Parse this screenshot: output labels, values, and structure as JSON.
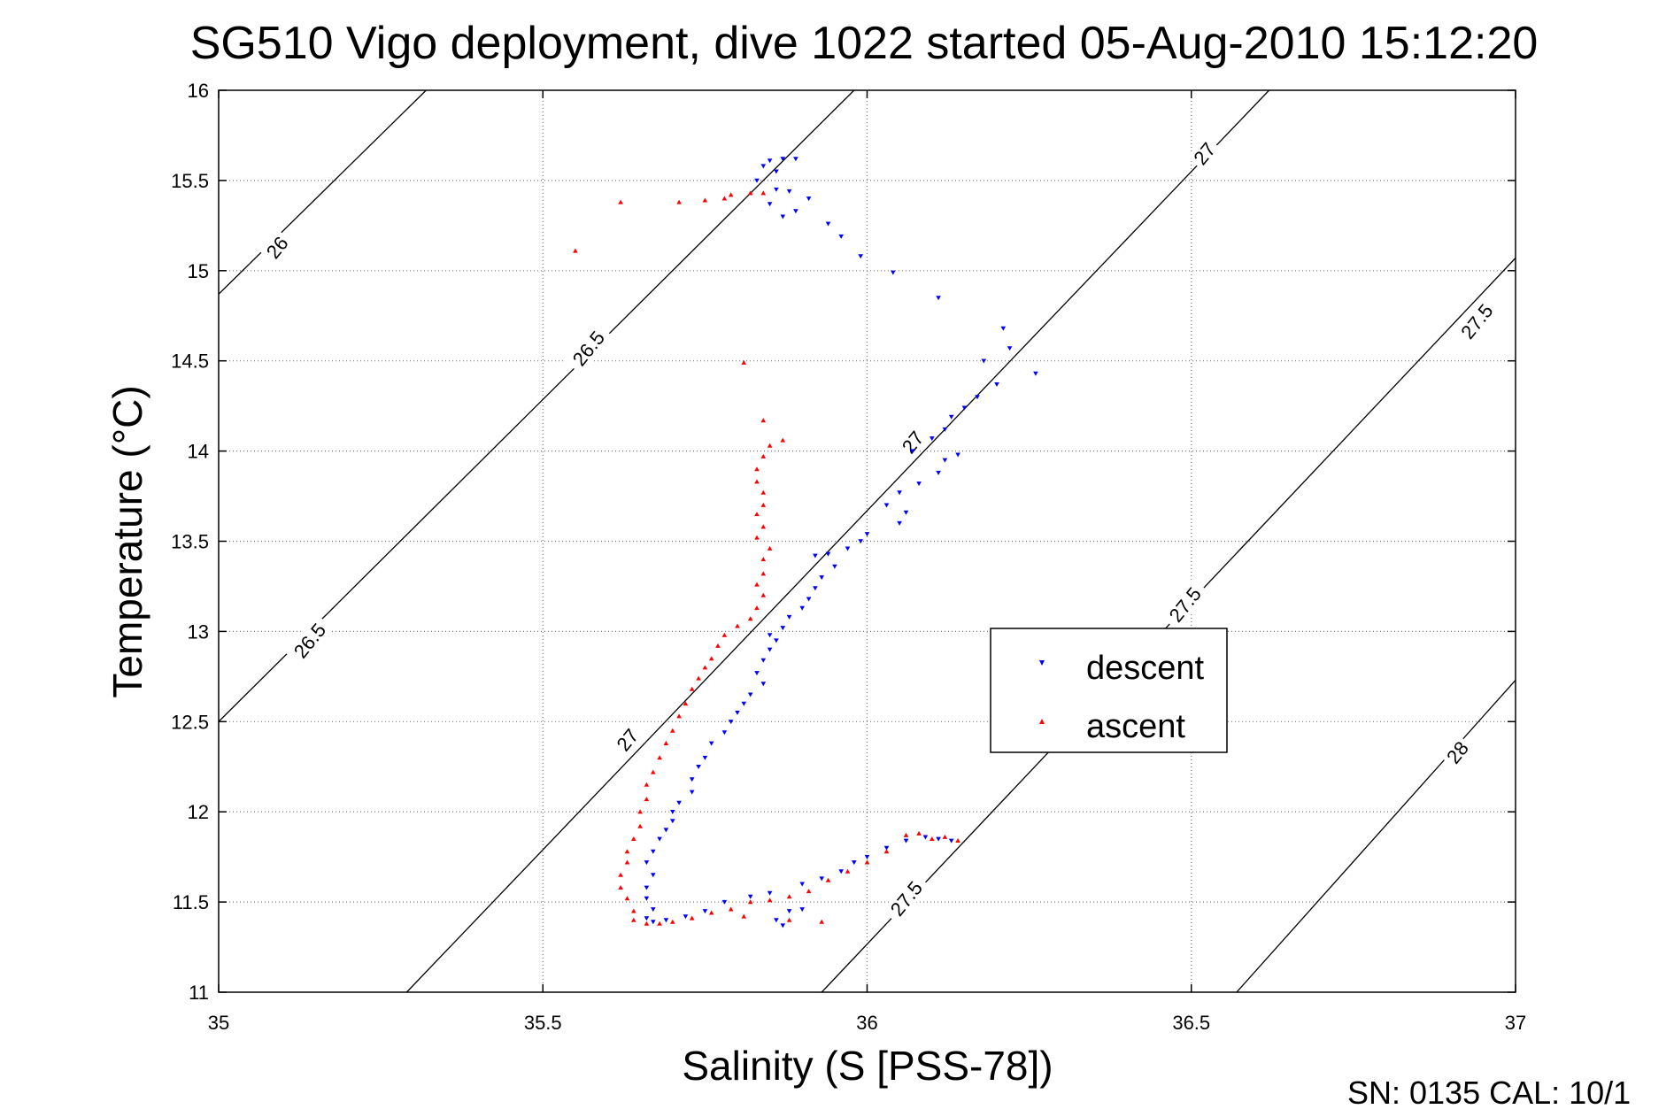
{
  "chart_data": {
    "type": "scatter",
    "title": "SG510 Vigo deployment, dive 1022 started 05-Aug-2010 15:12:20",
    "xlabel": "Salinity (S [PSS-78])",
    "ylabel": "Temperature (°C)",
    "xlim": [
      35,
      37
    ],
    "ylim": [
      11,
      16
    ],
    "xticks": [
      "35",
      "35.5",
      "36",
      "36.5",
      "37"
    ],
    "yticks": [
      "11",
      "11.5",
      "12",
      "12.5",
      "13",
      "13.5",
      "14",
      "14.5",
      "15",
      "15.5",
      "16"
    ],
    "grid": true,
    "legend_position": "center-right",
    "footer": "SN: 0135  CAL: 10/1",
    "density_contours": [
      {
        "label": "26",
        "points": [
          [
            35.0,
            14.87
          ],
          [
            35.32,
            16.0
          ]
        ]
      },
      {
        "label": "26.5",
        "points": [
          [
            35.0,
            12.5
          ],
          [
            35.98,
            16.0
          ]
        ]
      },
      {
        "label": "27",
        "points": [
          [
            35.29,
            11.0
          ],
          [
            36.62,
            16.0
          ]
        ]
      },
      {
        "label": "27.5",
        "points": [
          [
            35.93,
            11.0
          ],
          [
            37.0,
            15.07
          ]
        ]
      },
      {
        "label": "28",
        "points": [
          [
            36.57,
            11.0
          ],
          [
            37.0,
            12.73
          ]
        ]
      }
    ],
    "contour_labels": [
      {
        "text": "26",
        "x": 35.09,
        "y": 15.13
      },
      {
        "text": "26.5",
        "x": 35.57,
        "y": 14.57
      },
      {
        "text": "26.5",
        "x": 35.14,
        "y": 12.95
      },
      {
        "text": "27",
        "x": 36.52,
        "y": 15.65
      },
      {
        "text": "27",
        "x": 36.07,
        "y": 14.05
      },
      {
        "text": "27",
        "x": 35.63,
        "y": 12.4
      },
      {
        "text": "27.5",
        "x": 36.94,
        "y": 14.72
      },
      {
        "text": "27.5",
        "x": 36.49,
        "y": 13.15
      },
      {
        "text": "27.5",
        "x": 36.06,
        "y": 11.52
      },
      {
        "text": "28",
        "x": 36.91,
        "y": 12.33
      }
    ],
    "series": [
      {
        "name": "descent",
        "color": "#0000ff",
        "marker": "triangle-down",
        "points": [
          [
            35.89,
            15.62
          ],
          [
            35.87,
            15.62
          ],
          [
            35.85,
            15.61
          ],
          [
            35.84,
            15.58
          ],
          [
            35.86,
            15.55
          ],
          [
            35.83,
            15.5
          ],
          [
            35.86,
            15.45
          ],
          [
            35.88,
            15.44
          ],
          [
            35.91,
            15.4
          ],
          [
            35.85,
            15.37
          ],
          [
            35.89,
            15.33
          ],
          [
            35.87,
            15.3
          ],
          [
            35.94,
            15.26
          ],
          [
            35.96,
            15.19
          ],
          [
            35.99,
            15.08
          ],
          [
            36.04,
            14.99
          ],
          [
            36.11,
            14.85
          ],
          [
            36.21,
            14.68
          ],
          [
            36.22,
            14.57
          ],
          [
            36.18,
            14.5
          ],
          [
            36.26,
            14.43
          ],
          [
            36.2,
            14.37
          ],
          [
            36.17,
            14.3
          ],
          [
            36.15,
            14.24
          ],
          [
            36.13,
            14.19
          ],
          [
            36.12,
            14.12
          ],
          [
            36.1,
            14.07
          ],
          [
            36.07,
            14.0
          ],
          [
            36.14,
            13.98
          ],
          [
            36.12,
            13.95
          ],
          [
            36.11,
            13.88
          ],
          [
            36.08,
            13.82
          ],
          [
            36.05,
            13.77
          ],
          [
            36.03,
            13.7
          ],
          [
            36.06,
            13.66
          ],
          [
            36.05,
            13.6
          ],
          [
            36.0,
            13.54
          ],
          [
            35.99,
            13.5
          ],
          [
            35.97,
            13.46
          ],
          [
            35.94,
            13.43
          ],
          [
            35.92,
            13.42
          ],
          [
            35.95,
            13.36
          ],
          [
            35.93,
            13.3
          ],
          [
            35.92,
            13.24
          ],
          [
            35.91,
            13.18
          ],
          [
            35.9,
            13.13
          ],
          [
            35.88,
            13.08
          ],
          [
            35.87,
            13.02
          ],
          [
            35.85,
            12.98
          ],
          [
            35.86,
            12.95
          ],
          [
            35.85,
            12.9
          ],
          [
            35.84,
            12.84
          ],
          [
            35.83,
            12.77
          ],
          [
            35.84,
            12.71
          ],
          [
            35.82,
            12.65
          ],
          [
            35.81,
            12.6
          ],
          [
            35.8,
            12.55
          ],
          [
            35.79,
            12.5
          ],
          [
            35.78,
            12.44
          ],
          [
            35.76,
            12.38
          ],
          [
            35.75,
            12.3
          ],
          [
            35.74,
            12.25
          ],
          [
            35.73,
            12.18
          ],
          [
            35.73,
            12.11
          ],
          [
            35.71,
            12.05
          ],
          [
            35.7,
            12.0
          ],
          [
            35.7,
            11.95
          ],
          [
            35.69,
            11.9
          ],
          [
            35.68,
            11.85
          ],
          [
            35.67,
            11.78
          ],
          [
            35.66,
            11.72
          ],
          [
            35.67,
            11.65
          ],
          [
            35.66,
            11.58
          ],
          [
            35.66,
            11.52
          ],
          [
            35.67,
            11.46
          ],
          [
            35.66,
            11.41
          ],
          [
            35.67,
            11.39
          ],
          [
            35.69,
            11.4
          ],
          [
            35.72,
            11.42
          ],
          [
            35.75,
            11.45
          ],
          [
            35.78,
            11.5
          ],
          [
            35.82,
            11.53
          ],
          [
            35.85,
            11.55
          ],
          [
            35.9,
            11.6
          ],
          [
            35.93,
            11.63
          ],
          [
            35.96,
            11.67
          ],
          [
            35.98,
            11.72
          ],
          [
            36.0,
            11.75
          ],
          [
            36.03,
            11.8
          ],
          [
            36.06,
            11.84
          ],
          [
            36.09,
            11.86
          ],
          [
            36.11,
            11.85
          ],
          [
            36.13,
            11.84
          ],
          [
            35.86,
            11.4
          ],
          [
            35.88,
            11.45
          ],
          [
            35.9,
            11.46
          ],
          [
            35.87,
            11.37
          ]
        ]
      },
      {
        "name": "ascent",
        "color": "#ff0000",
        "marker": "triangle-up",
        "points": [
          [
            35.55,
            15.11
          ],
          [
            35.62,
            15.38
          ],
          [
            35.71,
            15.38
          ],
          [
            35.75,
            15.39
          ],
          [
            35.78,
            15.4
          ],
          [
            35.79,
            15.42
          ],
          [
            35.82,
            15.43
          ],
          [
            35.84,
            15.43
          ],
          [
            35.81,
            14.49
          ],
          [
            35.84,
            14.17
          ],
          [
            35.87,
            14.06
          ],
          [
            35.85,
            14.03
          ],
          [
            35.84,
            13.97
          ],
          [
            35.83,
            13.9
          ],
          [
            35.83,
            13.83
          ],
          [
            35.84,
            13.77
          ],
          [
            35.84,
            13.7
          ],
          [
            35.83,
            13.65
          ],
          [
            35.84,
            13.58
          ],
          [
            35.83,
            13.52
          ],
          [
            35.85,
            13.46
          ],
          [
            35.84,
            13.4
          ],
          [
            35.84,
            13.32
          ],
          [
            35.83,
            13.26
          ],
          [
            35.84,
            13.2
          ],
          [
            35.83,
            13.13
          ],
          [
            35.82,
            13.07
          ],
          [
            35.8,
            13.03
          ],
          [
            35.78,
            12.98
          ],
          [
            35.77,
            12.92
          ],
          [
            35.76,
            12.85
          ],
          [
            35.75,
            12.8
          ],
          [
            35.74,
            12.74
          ],
          [
            35.73,
            12.68
          ],
          [
            35.72,
            12.6
          ],
          [
            35.71,
            12.53
          ],
          [
            35.7,
            12.45
          ],
          [
            35.69,
            12.38
          ],
          [
            35.68,
            12.3
          ],
          [
            35.67,
            12.22
          ],
          [
            35.66,
            12.15
          ],
          [
            35.66,
            12.07
          ],
          [
            35.65,
            12.0
          ],
          [
            35.65,
            11.92
          ],
          [
            35.64,
            11.85
          ],
          [
            35.63,
            11.78
          ],
          [
            35.63,
            11.72
          ],
          [
            35.62,
            11.65
          ],
          [
            35.62,
            11.58
          ],
          [
            35.63,
            11.52
          ],
          [
            35.64,
            11.45
          ],
          [
            35.64,
            11.4
          ],
          [
            35.66,
            11.38
          ],
          [
            35.68,
            11.38
          ],
          [
            35.7,
            11.39
          ],
          [
            35.73,
            11.41
          ],
          [
            35.76,
            11.44
          ],
          [
            35.79,
            11.46
          ],
          [
            35.82,
            11.5
          ],
          [
            35.85,
            11.51
          ],
          [
            35.88,
            11.53
          ],
          [
            35.91,
            11.56
          ],
          [
            35.94,
            11.62
          ],
          [
            35.97,
            11.67
          ],
          [
            36.0,
            11.72
          ],
          [
            36.03,
            11.78
          ],
          [
            36.06,
            11.87
          ],
          [
            36.08,
            11.88
          ],
          [
            36.1,
            11.85
          ],
          [
            36.12,
            11.86
          ],
          [
            36.14,
            11.84
          ],
          [
            35.81,
            11.42
          ],
          [
            35.88,
            11.4
          ],
          [
            35.93,
            11.39
          ]
        ]
      }
    ]
  }
}
